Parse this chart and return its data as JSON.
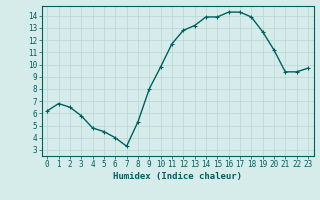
{
  "x": [
    0,
    1,
    2,
    3,
    4,
    5,
    6,
    7,
    8,
    9,
    10,
    11,
    12,
    13,
    14,
    15,
    16,
    17,
    18,
    19,
    20,
    21,
    22,
    23
  ],
  "y": [
    6.2,
    6.8,
    6.5,
    5.8,
    4.8,
    4.5,
    4.0,
    3.3,
    5.3,
    8.0,
    9.8,
    11.7,
    12.8,
    13.2,
    13.9,
    13.9,
    14.3,
    14.3,
    13.9,
    12.7,
    11.2,
    9.4,
    9.4,
    9.7
  ],
  "line_color": "#006060",
  "marker": "+",
  "marker_size": 3,
  "line_width": 1.0,
  "bg_color": "#d5ecea",
  "grid_color": "#b8d4d4",
  "tick_color": "#006060",
  "label_color": "#006060",
  "xlabel": "Humidex (Indice chaleur)",
  "xlim": [
    -0.5,
    23.5
  ],
  "ylim": [
    2.5,
    14.8
  ],
  "yticks": [
    3,
    4,
    5,
    6,
    7,
    8,
    9,
    10,
    11,
    12,
    13,
    14
  ],
  "xticks": [
    0,
    1,
    2,
    3,
    4,
    5,
    6,
    7,
    8,
    9,
    10,
    11,
    12,
    13,
    14,
    15,
    16,
    17,
    18,
    19,
    20,
    21,
    22,
    23
  ],
  "xtick_labels": [
    "0",
    "1",
    "2",
    "3",
    "4",
    "5",
    "6",
    "7",
    "8",
    "9",
    "10",
    "11",
    "12",
    "13",
    "14",
    "15",
    "16",
    "17",
    "18",
    "19",
    "20",
    "21",
    "22",
    "23"
  ],
  "xlabel_fontsize": 6.5,
  "tick_fontsize": 5.5
}
